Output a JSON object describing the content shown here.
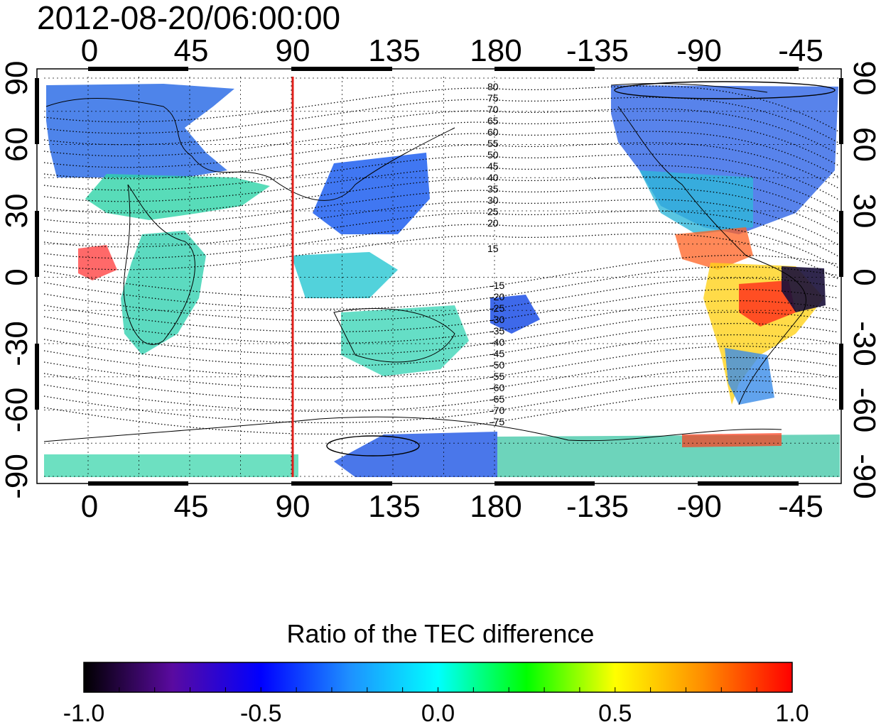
{
  "title": "2012-08-20/06:00:00",
  "top_lon_labels": [
    "0",
    "45",
    "90",
    "135",
    "180",
    "-135",
    "-90",
    "-45"
  ],
  "bottom_lon_labels": [
    "0",
    "45",
    "90",
    "135",
    "180",
    "-135",
    "-90",
    "-45"
  ],
  "left_lat_labels": [
    "90",
    "60",
    "30",
    "0",
    "-30",
    "-60",
    "-90"
  ],
  "right_lat_labels": [
    "90",
    "60",
    "30",
    "0",
    "-30",
    "-60",
    "-90"
  ],
  "contour_labels_north": [
    "80",
    "75",
    "70",
    "65",
    "60",
    "55",
    "50",
    "45",
    "40",
    "35",
    "30",
    "25",
    "20",
    "15"
  ],
  "contour_labels_south": [
    "-15",
    "-20",
    "-25",
    "-30",
    "-35",
    "-40",
    "-45",
    "-50",
    "-55",
    "-60",
    "-65",
    "-70",
    "-75"
  ],
  "marker_line": {
    "longitude": 90,
    "color": "#e0201b"
  },
  "colorbar": {
    "title": "Ratio of the TEC difference",
    "tick_labels": [
      "-1.0",
      "-0.5",
      "0.0",
      "0.5",
      "1.0"
    ],
    "min": -1.0,
    "max": 1.0,
    "colors": [
      "#000000",
      "#5a0aa0",
      "#0000ff",
      "#1e90ff",
      "#00ffff",
      "#00ff00",
      "#ffff00",
      "#ff8c00",
      "#ff0000"
    ]
  }
}
